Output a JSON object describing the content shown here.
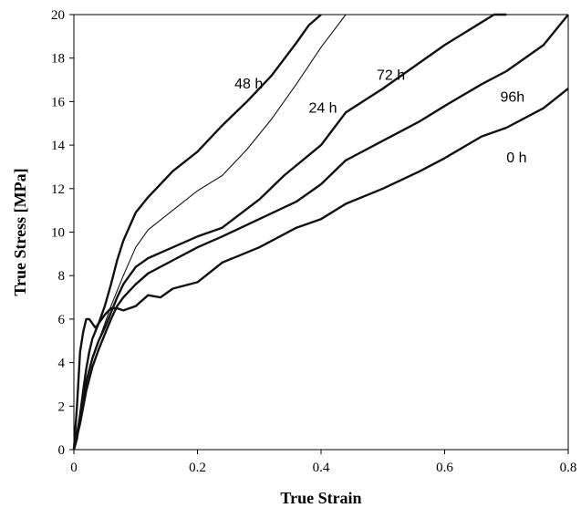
{
  "chart_data": {
    "type": "line",
    "title": "",
    "xlabel": "True Strain",
    "ylabel": "True Stress [MPa]",
    "xlim": [
      0,
      0.8
    ],
    "ylim": [
      0,
      20
    ],
    "x_ticks": [
      "0",
      "0.2",
      "0.4",
      "0.6",
      "0.8"
    ],
    "y_ticks": [
      "0",
      "2",
      "4",
      "6",
      "8",
      "10",
      "12",
      "14",
      "16",
      "18",
      "20"
    ],
    "grid": false,
    "legend": "none (inline labels)",
    "series": [
      {
        "name": "0 h",
        "line_width": 2.4,
        "x": [
          0,
          0.005,
          0.01,
          0.015,
          0.02,
          0.025,
          0.03,
          0.04,
          0.05,
          0.06,
          0.07,
          0.08,
          0.1,
          0.12,
          0.14,
          0.16,
          0.2,
          0.24,
          0.3,
          0.36,
          0.4,
          0.44,
          0.5,
          0.56,
          0.6,
          0.66,
          0.7,
          0.76,
          0.8
        ],
        "y": [
          0,
          0.5,
          1.6,
          2.7,
          3.7,
          4.5,
          5.1,
          5.8,
          6.2,
          6.5,
          6.5,
          6.4,
          6.6,
          7.1,
          7.0,
          7.4,
          7.7,
          8.6,
          9.3,
          10.2,
          10.6,
          11.3,
          12.0,
          12.8,
          13.4,
          14.4,
          14.8,
          15.7,
          16.6
        ]
      },
      {
        "name": "96h",
        "line_width": 2.4,
        "x": [
          0,
          0.01,
          0.02,
          0.03,
          0.04,
          0.05,
          0.06,
          0.07,
          0.08,
          0.1,
          0.12,
          0.16,
          0.2,
          0.24,
          0.3,
          0.36,
          0.4,
          0.44,
          0.5,
          0.56,
          0.6,
          0.66,
          0.7,
          0.76,
          0.8
        ],
        "y": [
          0,
          1.2,
          2.7,
          3.8,
          4.6,
          5.3,
          6.0,
          6.6,
          7.0,
          7.6,
          8.1,
          8.7,
          9.3,
          9.8,
          10.6,
          11.4,
          12.2,
          13.3,
          14.2,
          15.1,
          15.8,
          16.8,
          17.4,
          18.6,
          20.0
        ]
      },
      {
        "name": "72 h",
        "line_width": 2.4,
        "x": [
          0,
          0.01,
          0.02,
          0.03,
          0.04,
          0.05,
          0.06,
          0.07,
          0.08,
          0.1,
          0.12,
          0.16,
          0.2,
          0.24,
          0.3,
          0.34,
          0.4,
          0.44,
          0.5,
          0.56,
          0.6,
          0.64,
          0.68,
          0.7
        ],
        "y": [
          0,
          1.5,
          3.1,
          4.2,
          5.0,
          5.6,
          6.3,
          7.0,
          7.6,
          8.4,
          8.8,
          9.3,
          9.8,
          10.2,
          11.5,
          12.6,
          14.0,
          15.5,
          16.6,
          17.8,
          18.6,
          19.3,
          20.0,
          20.0
        ]
      },
      {
        "name": "24 h",
        "line_width": 1.1,
        "x": [
          0,
          0.01,
          0.02,
          0.03,
          0.04,
          0.05,
          0.06,
          0.07,
          0.08,
          0.1,
          0.12,
          0.16,
          0.2,
          0.24,
          0.28,
          0.32,
          0.36,
          0.4,
          0.44
        ],
        "y": [
          0,
          1.6,
          3.2,
          4.2,
          5.0,
          5.8,
          6.6,
          7.3,
          8.0,
          9.3,
          10.1,
          11.0,
          11.9,
          12.6,
          13.8,
          15.2,
          16.8,
          18.5,
          20.0
        ]
      },
      {
        "name": "48 h",
        "line_width": 2.4,
        "x": [
          0,
          0.005,
          0.01,
          0.015,
          0.02,
          0.025,
          0.03,
          0.035,
          0.04,
          0.05,
          0.06,
          0.07,
          0.08,
          0.1,
          0.12,
          0.14,
          0.16,
          0.2,
          0.24,
          0.28,
          0.32,
          0.36,
          0.38,
          0.4
        ],
        "y": [
          0,
          2.0,
          4.5,
          5.4,
          6.0,
          6.0,
          5.8,
          5.6,
          5.8,
          6.6,
          7.6,
          8.7,
          9.6,
          10.9,
          11.6,
          12.2,
          12.8,
          13.7,
          14.9,
          16.0,
          17.2,
          18.7,
          19.5,
          20.0
        ]
      }
    ],
    "annotations": [
      {
        "text": "48 h",
        "x": 0.26,
        "y": 16.6
      },
      {
        "text": "24 h",
        "x": 0.38,
        "y": 15.5
      },
      {
        "text": "72 h",
        "x": 0.49,
        "y": 17.0
      },
      {
        "text": "96h",
        "x": 0.69,
        "y": 16.0
      },
      {
        "text": "0 h",
        "x": 0.7,
        "y": 13.2
      }
    ]
  }
}
